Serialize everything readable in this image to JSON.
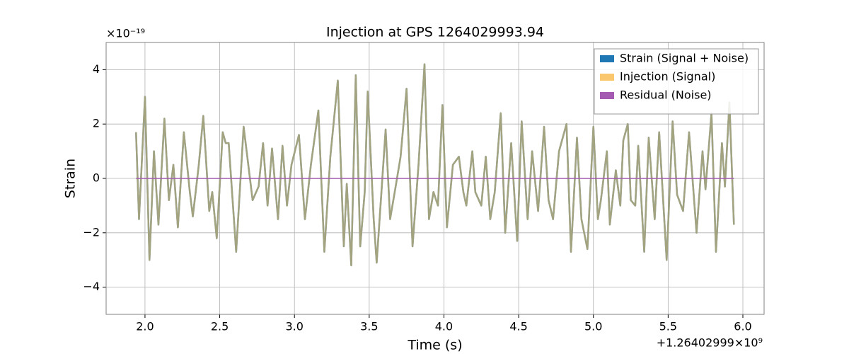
{
  "chart_data": {
    "type": "line",
    "title": "Injection at GPS 1264029993.94",
    "x_label": "Time (s)",
    "y_label": "Strain",
    "x_offset": "+1.26402999×10⁹",
    "y_multiplier": "×10⁻¹⁹",
    "xlim": [
      1.74,
      6.142
    ],
    "ylim": [
      -5,
      5
    ],
    "xticks": [
      {
        "value": 2,
        "label": "2.0"
      },
      {
        "value": 2.5,
        "label": "2.5"
      },
      {
        "value": 3,
        "label": "3.0"
      },
      {
        "value": 3.5,
        "label": "3.5"
      },
      {
        "value": 4,
        "label": "4.0"
      },
      {
        "value": 4.5,
        "label": "4.5"
      },
      {
        "value": 5,
        "label": "5.0"
      },
      {
        "value": 5.5,
        "label": "5.5"
      },
      {
        "value": 6,
        "label": "6.0"
      }
    ],
    "yticks": [
      {
        "value": -4,
        "label": "−4"
      },
      {
        "value": -2,
        "label": "−2"
      },
      0,
      2,
      4
    ],
    "grid": true,
    "legend": "upper right",
    "x": [
      1.94,
      1.96,
      2.0,
      2.03,
      2.06,
      2.09,
      2.13,
      2.16,
      2.19,
      2.22,
      2.26,
      2.3,
      2.32,
      2.36,
      2.39,
      2.43,
      2.45,
      2.48,
      2.52,
      2.54,
      2.56,
      2.61,
      2.66,
      2.72,
      2.76,
      2.79,
      2.82,
      2.85,
      2.89,
      2.92,
      2.95,
      2.98,
      3.03,
      3.07,
      3.11,
      3.16,
      3.2,
      3.24,
      3.29,
      3.33,
      3.35,
      3.38,
      3.41,
      3.44,
      3.47,
      3.49,
      3.53,
      3.55,
      3.61,
      3.64,
      3.68,
      3.71,
      3.75,
      3.79,
      3.83,
      3.87,
      3.9,
      3.93,
      3.96,
      3.99,
      4.02,
      4.06,
      4.1,
      4.13,
      4.15,
      4.19,
      4.21,
      4.25,
      4.28,
      4.31,
      4.34,
      4.38,
      4.41,
      4.45,
      4.49,
      4.52,
      4.56,
      4.59,
      4.63,
      4.67,
      4.7,
      4.73,
      4.77,
      4.82,
      4.85,
      4.89,
      4.92,
      4.96,
      5.0,
      5.03,
      5.05,
      5.09,
      5.11,
      5.15,
      5.18,
      5.2,
      5.23,
      5.25,
      5.28,
      5.3,
      5.34,
      5.37,
      5.41,
      5.44,
      5.49,
      5.53,
      5.56,
      5.6,
      5.64,
      5.69,
      5.73,
      5.75,
      5.79,
      5.82,
      5.86,
      5.88,
      5.91,
      5.94
    ],
    "series": [
      {
        "name": "Strain (Signal + Noise)",
        "color": "#1f77b4",
        "values": [
          1.7,
          -1.5,
          3.0,
          -3.0,
          1.0,
          -1.7,
          2.2,
          -0.8,
          0.5,
          -1.8,
          1.7,
          -0.5,
          -1.4,
          0.5,
          2.3,
          -1.2,
          -0.5,
          -2.2,
          1.7,
          1.3,
          1.3,
          -2.7,
          1.9,
          -0.8,
          -0.3,
          1.3,
          -1.0,
          1.1,
          -1.5,
          1.2,
          -1.0,
          0.5,
          1.6,
          -1.5,
          0.5,
          2.5,
          -2.7,
          0.8,
          3.6,
          -2.5,
          -0.2,
          -3.2,
          3.8,
          -2.5,
          -0.5,
          3.2,
          -1.5,
          -3.1,
          1.8,
          -1.5,
          -0.2,
          0.8,
          3.3,
          -2.5,
          0.5,
          4.2,
          -1.5,
          -0.5,
          -1.0,
          2.7,
          -1.8,
          0.5,
          0.8,
          -0.5,
          -1.0,
          1.0,
          -0.5,
          -1.0,
          0.8,
          -1.5,
          -0.5,
          2.4,
          -2.0,
          1.3,
          -2.3,
          2.1,
          -1.5,
          1.0,
          -1.2,
          1.9,
          -0.8,
          -1.5,
          1.0,
          2.0,
          -2.7,
          1.5,
          -1.5,
          -2.6,
          1.9,
          -1.5,
          -0.8,
          1.0,
          -1.7,
          0.3,
          -1.0,
          1.4,
          2.0,
          -0.8,
          -1.0,
          1.2,
          -2.7,
          1.5,
          -1.5,
          1.7,
          -3.0,
          2.1,
          -0.6,
          -1.2,
          1.7,
          -2.0,
          1.0,
          -0.4,
          2.4,
          -2.7,
          1.3,
          -0.3,
          2.8,
          -1.7
        ]
      },
      {
        "name": "Injection (Signal)",
        "color": "#fbc15e",
        "values": [
          1.7,
          -1.5,
          3.0,
          -3.0,
          1.0,
          -1.7,
          2.2,
          -0.8,
          0.5,
          -1.8,
          1.7,
          -0.5,
          -1.4,
          0.5,
          2.3,
          -1.2,
          -0.5,
          -2.2,
          1.7,
          1.3,
          1.3,
          -2.7,
          1.9,
          -0.8,
          -0.3,
          1.3,
          -1.0,
          1.1,
          -1.5,
          1.2,
          -1.0,
          0.5,
          1.6,
          -1.5,
          0.5,
          2.5,
          -2.7,
          0.8,
          3.6,
          -2.5,
          -0.2,
          -3.2,
          3.8,
          -2.5,
          -0.5,
          3.2,
          -1.5,
          -3.1,
          1.8,
          -1.5,
          -0.2,
          0.8,
          3.3,
          -2.5,
          0.5,
          4.2,
          -1.5,
          -0.5,
          -1.0,
          2.7,
          -1.8,
          0.5,
          0.8,
          -0.5,
          -1.0,
          1.0,
          -0.5,
          -1.0,
          0.8,
          -1.5,
          -0.5,
          2.4,
          -2.0,
          1.3,
          -2.3,
          2.1,
          -1.5,
          1.0,
          -1.2,
          1.9,
          -0.8,
          -1.5,
          1.0,
          2.0,
          -2.7,
          1.5,
          -1.5,
          -2.6,
          1.9,
          -1.5,
          -0.8,
          1.0,
          -1.7,
          0.3,
          -1.0,
          1.4,
          2.0,
          -0.8,
          -1.0,
          1.2,
          -2.7,
          1.5,
          -1.5,
          1.7,
          -3.0,
          2.1,
          -0.6,
          -1.2,
          1.7,
          -2.0,
          1.0,
          -0.4,
          2.4,
          -2.7,
          1.3,
          -0.3,
          2.8,
          -1.7
        ]
      },
      {
        "name": "Residual (Noise)",
        "color": "#a35ab0",
        "x": [
          1.94,
          5.94
        ],
        "values": [
          0,
          0
        ]
      }
    ]
  }
}
